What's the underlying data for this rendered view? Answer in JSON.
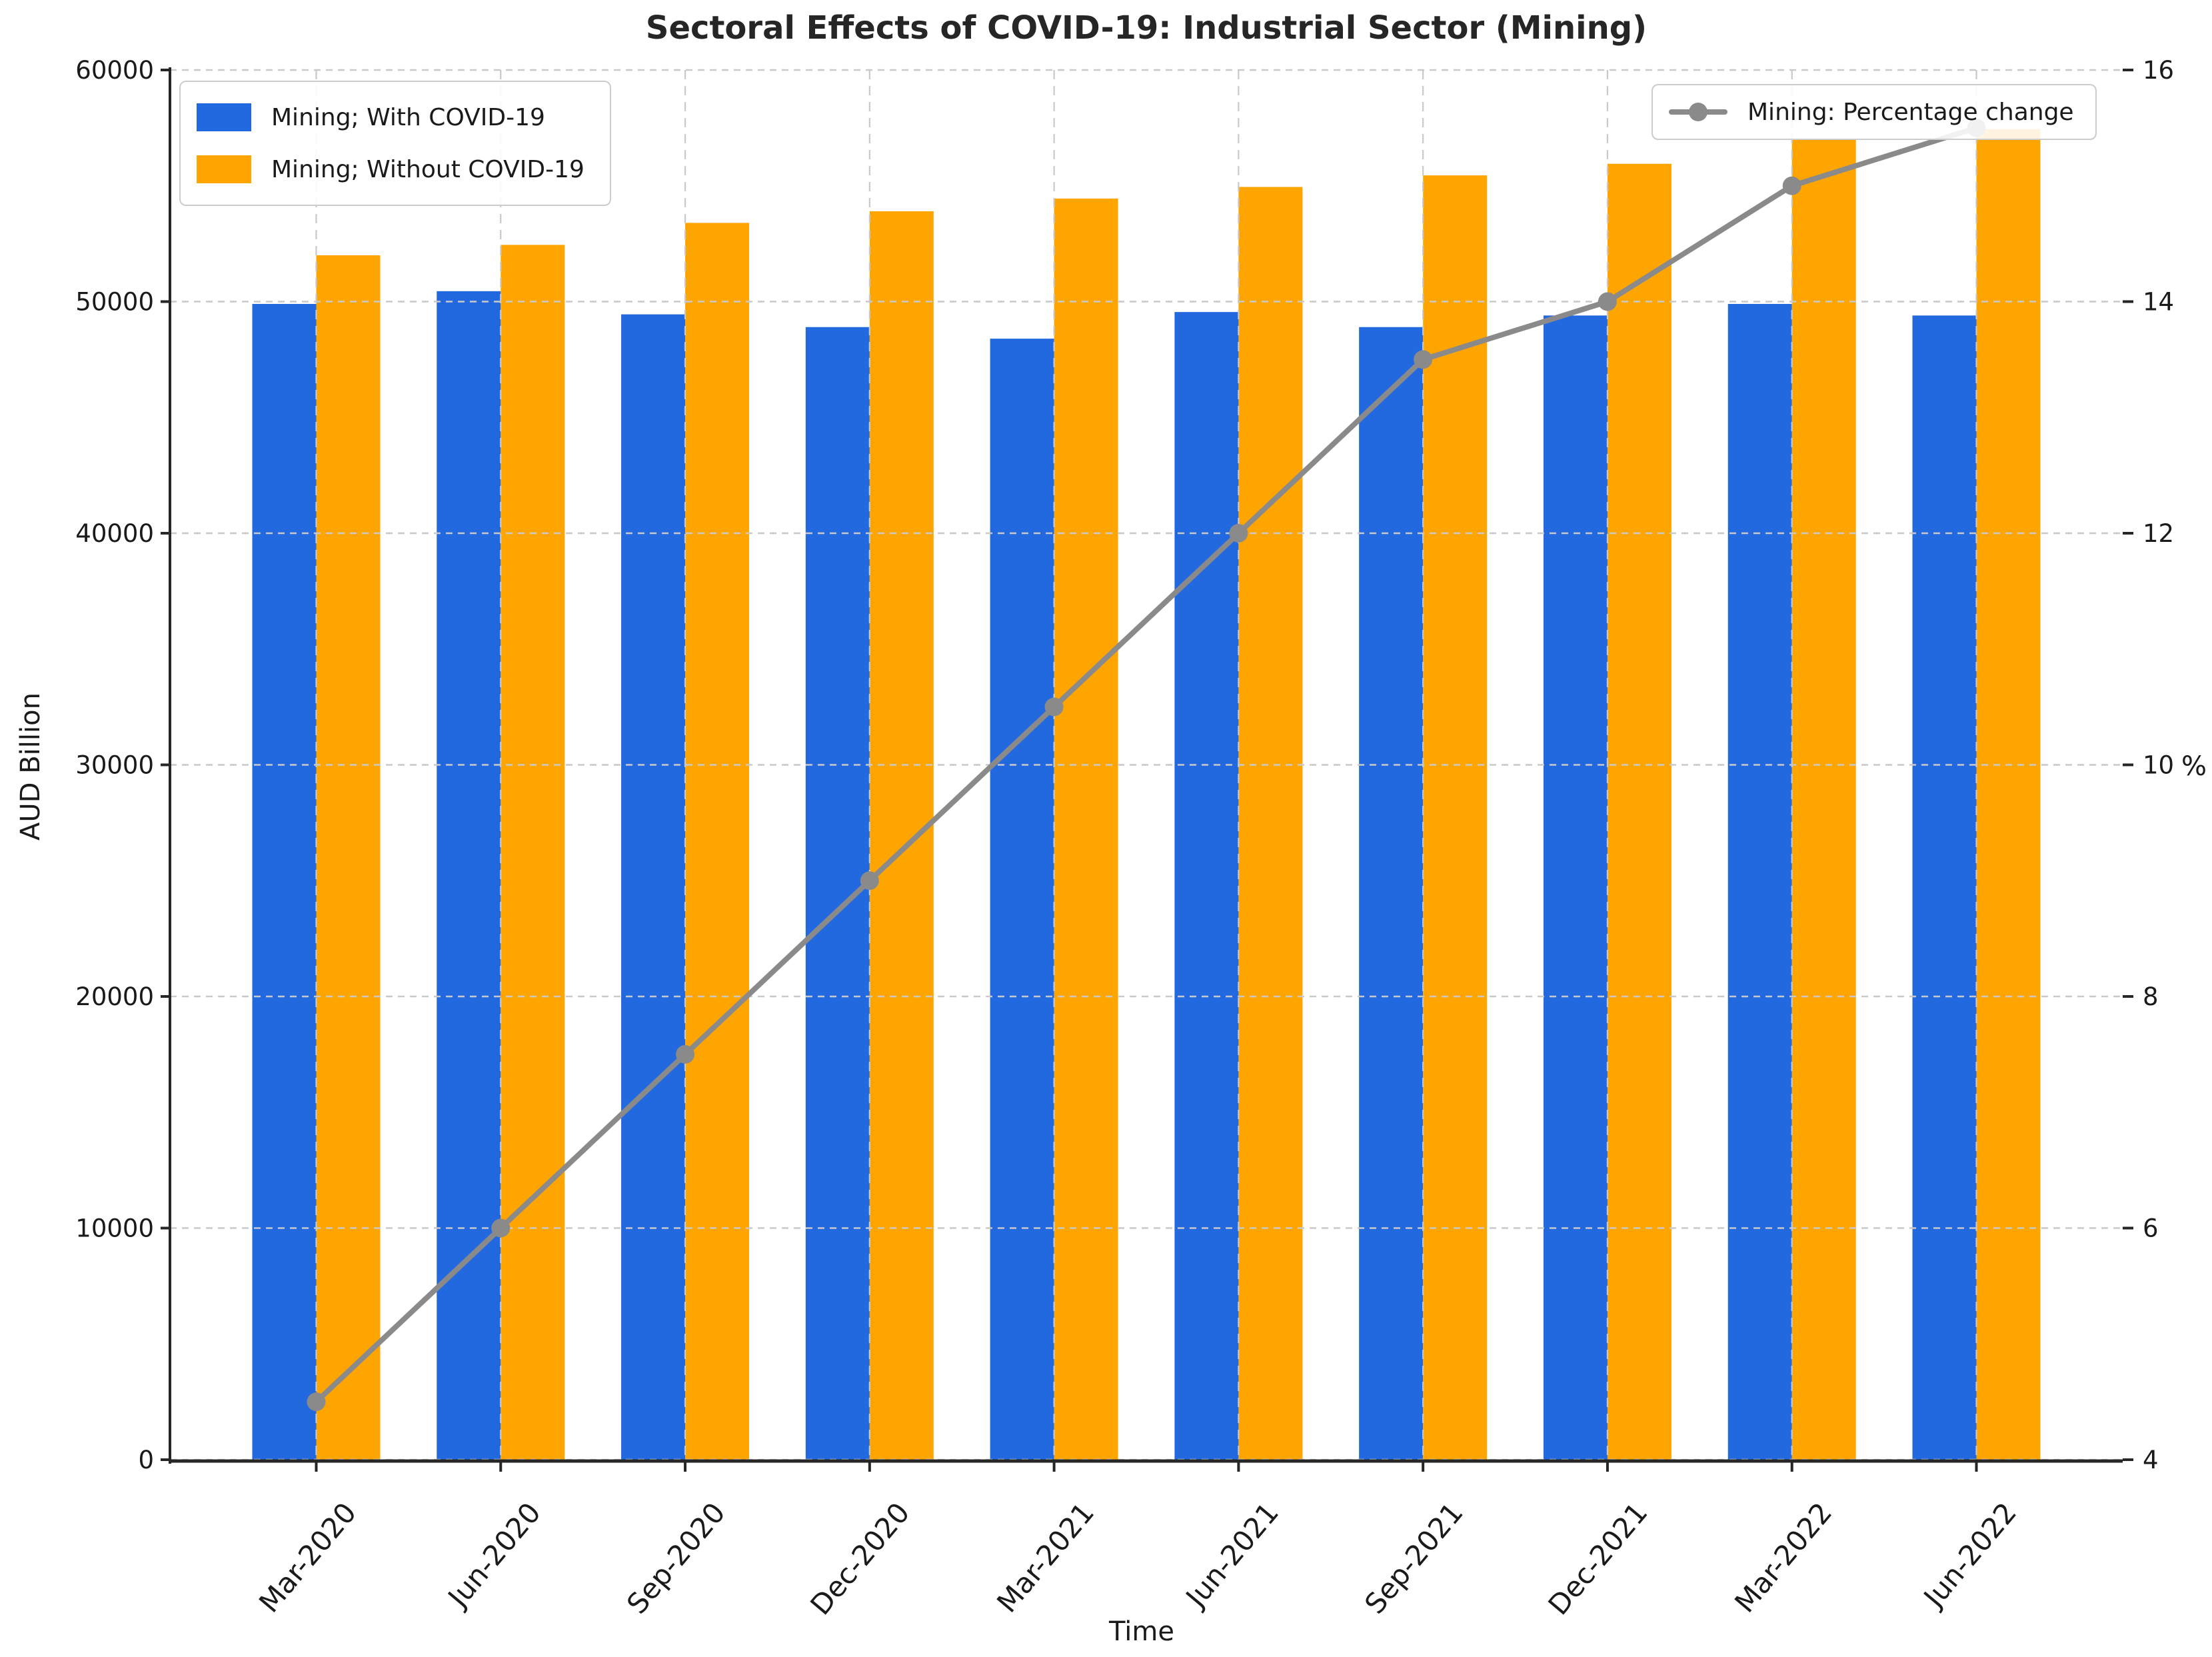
{
  "chart_data": {
    "type": "bar",
    "title": "Sectoral Effects of COVID-19: Industrial Sector (Mining)",
    "xlabel": "Time",
    "ylabel_left": "AUD Billion",
    "ylabel_right": "%",
    "categories": [
      "Mar-2020",
      "Jun-2020",
      "Sep-2020",
      "Dec-2020",
      "Mar-2021",
      "Jun-2021",
      "Sep-2021",
      "Dec-2021",
      "Mar-2022",
      "Jun-2022"
    ],
    "series": [
      {
        "name": "Mining; With COVID-19",
        "type": "bar",
        "axis": "left",
        "color": "#2269DF",
        "values": [
          49900,
          50450,
          49450,
          48900,
          48400,
          49550,
          48900,
          49400,
          49900,
          49400
        ]
      },
      {
        "name": "Mining; Without COVID-19",
        "type": "bar",
        "axis": "left",
        "color": "#FFA502",
        "values": [
          52000,
          52450,
          53400,
          53900,
          54450,
          54950,
          55450,
          55950,
          57000,
          57450
        ]
      },
      {
        "name": "Mining: Percentage change",
        "type": "line",
        "axis": "right",
        "color": "#8A8A8A",
        "values": [
          4.5,
          6.0,
          7.5,
          9.0,
          10.5,
          12.0,
          13.5,
          14.0,
          15.0,
          15.5
        ]
      }
    ],
    "y_left": {
      "min": 0,
      "max": 60000,
      "ticks": [
        0,
        10000,
        20000,
        30000,
        40000,
        50000,
        60000
      ]
    },
    "y_right": {
      "min": 4,
      "max": 16,
      "ticks": [
        4,
        6,
        8,
        10,
        12,
        14,
        16
      ]
    },
    "grid": true,
    "legend_positions": [
      "upper left",
      "upper right"
    ]
  },
  "colors": {
    "grid": "#C9C9C9",
    "spine": "#262626",
    "tick_text": "#1A1A1A",
    "title_text": "#262626",
    "background": "#FFFFFF"
  }
}
